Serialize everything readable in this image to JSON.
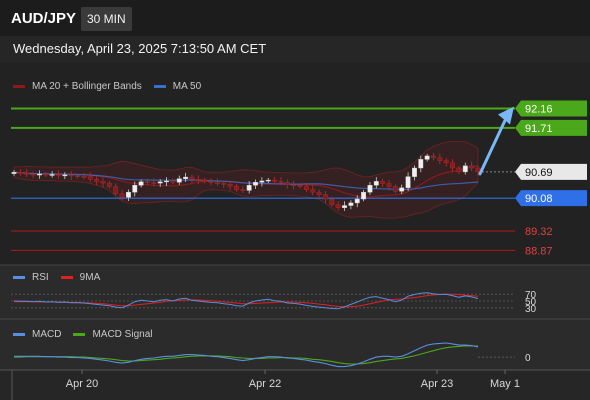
{
  "header": {
    "symbol": "AUD/JPY",
    "timeframe": "30 MIN",
    "timestamp": "Wednesday, April 23, 2025 7:13:50 AM CET"
  },
  "legends": {
    "price": [
      {
        "label": "MA 20 + Bollinger Bands",
        "color": "#8b1a1a"
      },
      {
        "label": "MA 50",
        "color": "#3a6fd1"
      }
    ],
    "rsi": [
      {
        "label": "RSI",
        "color": "#5b8de0"
      },
      {
        "label": "9MA",
        "color": "#e02020"
      }
    ],
    "macd": [
      {
        "label": "MACD",
        "color": "#5b8de0"
      },
      {
        "label": "MACD Signal",
        "color": "#4aa81a"
      }
    ]
  },
  "colors": {
    "background": "#262626",
    "resistance": "#4aa81a",
    "support": "#2f6fe8",
    "lower_levels": "#b01818",
    "arrow": "#7ab8f5",
    "bull_candle": "#f0f0f0",
    "bear_candle": "#8b1a1a"
  },
  "chart_data": {
    "type": "candlestick",
    "symbol": "AUD/JPY",
    "timeframe": "30 MIN",
    "x_ticks": [
      "Apr 20",
      "Apr 22",
      "Apr 23",
      "May 1"
    ],
    "price_range": [
      88.6,
      92.45
    ],
    "current_price": 90.69,
    "levels": [
      {
        "value": "92.16",
        "kind": "resistance"
      },
      {
        "value": "91.71",
        "kind": "resistance"
      },
      {
        "value": "90.69",
        "kind": "current"
      },
      {
        "value": "90.08",
        "kind": "support"
      },
      {
        "value": "89.32",
        "kind": "lower"
      },
      {
        "value": "88.87",
        "kind": "lower"
      }
    ],
    "forecast_arrow": {
      "from": 90.69,
      "to": 92.16
    },
    "closes": [
      90.68,
      90.66,
      90.64,
      90.63,
      90.64,
      90.62,
      90.63,
      90.61,
      90.62,
      90.6,
      90.59,
      90.58,
      90.52,
      90.47,
      90.43,
      90.35,
      90.18,
      90.1,
      90.22,
      90.38,
      90.46,
      90.44,
      90.43,
      90.46,
      90.48,
      90.45,
      90.53,
      90.57,
      90.52,
      90.5,
      90.47,
      90.44,
      90.43,
      90.4,
      90.36,
      90.28,
      90.26,
      90.38,
      90.45,
      90.48,
      90.5,
      90.47,
      90.45,
      90.39,
      90.38,
      90.35,
      90.28,
      90.22,
      90.16,
      90.06,
      89.93,
      89.86,
      89.91,
      89.97,
      90.06,
      90.22,
      90.38,
      90.47,
      90.42,
      90.35,
      90.24,
      90.32,
      90.58,
      90.78,
      90.98,
      91.06,
      91.02,
      90.95,
      90.9,
      90.78,
      90.69,
      90.83,
      90.78,
      90.69
    ],
    "rsi": {
      "ticks": [
        "70",
        "50",
        "30"
      ],
      "rsi_values": [
        50,
        49,
        49,
        48,
        49,
        47,
        48,
        46,
        47,
        45,
        45,
        44,
        42,
        40,
        38,
        36,
        32,
        30,
        38,
        48,
        52,
        50,
        48,
        52,
        54,
        50,
        56,
        58,
        52,
        50,
        48,
        46,
        45,
        42,
        40,
        36,
        35,
        44,
        50,
        53,
        55,
        51,
        49,
        44,
        43,
        41,
        37,
        34,
        32,
        30,
        28,
        27,
        33,
        40,
        47,
        55,
        61,
        63,
        58,
        54,
        48,
        53,
        64,
        69,
        73,
        74,
        71,
        69,
        70,
        66,
        61,
        65,
        62,
        57
      ],
      "ma9": [
        48,
        48,
        48,
        48,
        47,
        47,
        47,
        47,
        46,
        46,
        46,
        45,
        44,
        43,
        42,
        40,
        38,
        36,
        36,
        38,
        40,
        42,
        44,
        46,
        49,
        51,
        52,
        53,
        53,
        53,
        52,
        51,
        49,
        47,
        46,
        44,
        42,
        42,
        43,
        44,
        45,
        46,
        47,
        47,
        47,
        46,
        45,
        43,
        41,
        39,
        36,
        34,
        33,
        33,
        35,
        38,
        42,
        46,
        50,
        53,
        55,
        56,
        58,
        60,
        63,
        66,
        68,
        69,
        70,
        70,
        69,
        67,
        66,
        64
      ]
    },
    "macd": {
      "ticks": [
        "0"
      ],
      "macd_values": [
        0.02,
        0.02,
        0.02,
        0.02,
        0.02,
        0.01,
        0.01,
        0.0,
        0.0,
        -0.01,
        -0.01,
        -0.02,
        -0.03,
        -0.05,
        -0.07,
        -0.09,
        -0.12,
        -0.14,
        -0.12,
        -0.08,
        -0.05,
        -0.03,
        -0.02,
        0.0,
        0.02,
        0.02,
        0.04,
        0.06,
        0.06,
        0.05,
        0.04,
        0.02,
        0.01,
        -0.01,
        -0.03,
        -0.06,
        -0.08,
        -0.06,
        -0.03,
        -0.01,
        0.01,
        0.01,
        0.0,
        -0.02,
        -0.03,
        -0.05,
        -0.07,
        -0.1,
        -0.12,
        -0.15,
        -0.19,
        -0.22,
        -0.22,
        -0.2,
        -0.16,
        -0.11,
        -0.05,
        0.0,
        0.02,
        0.02,
        0.0,
        0.02,
        0.08,
        0.15,
        0.22,
        0.28,
        0.31,
        0.32,
        0.33,
        0.31,
        0.28,
        0.28,
        0.27,
        0.24
      ],
      "signal_values": [
        0.0,
        0.0,
        0.01,
        0.01,
        0.01,
        0.01,
        0.01,
        0.01,
        0.01,
        0.01,
        0.0,
        0.0,
        -0.01,
        -0.02,
        -0.03,
        -0.04,
        -0.06,
        -0.08,
        -0.09,
        -0.09,
        -0.08,
        -0.07,
        -0.06,
        -0.05,
        -0.03,
        -0.02,
        -0.01,
        0.01,
        0.02,
        0.03,
        0.03,
        0.03,
        0.03,
        0.02,
        0.01,
        -0.01,
        -0.02,
        -0.03,
        -0.03,
        -0.03,
        -0.02,
        -0.02,
        -0.01,
        -0.01,
        -0.02,
        -0.02,
        -0.03,
        -0.05,
        -0.06,
        -0.08,
        -0.1,
        -0.13,
        -0.15,
        -0.16,
        -0.16,
        -0.15,
        -0.13,
        -0.1,
        -0.08,
        -0.06,
        -0.04,
        -0.03,
        0.0,
        0.03,
        0.07,
        0.11,
        0.15,
        0.19,
        0.22,
        0.24,
        0.25,
        0.26,
        0.26,
        0.26
      ]
    }
  }
}
